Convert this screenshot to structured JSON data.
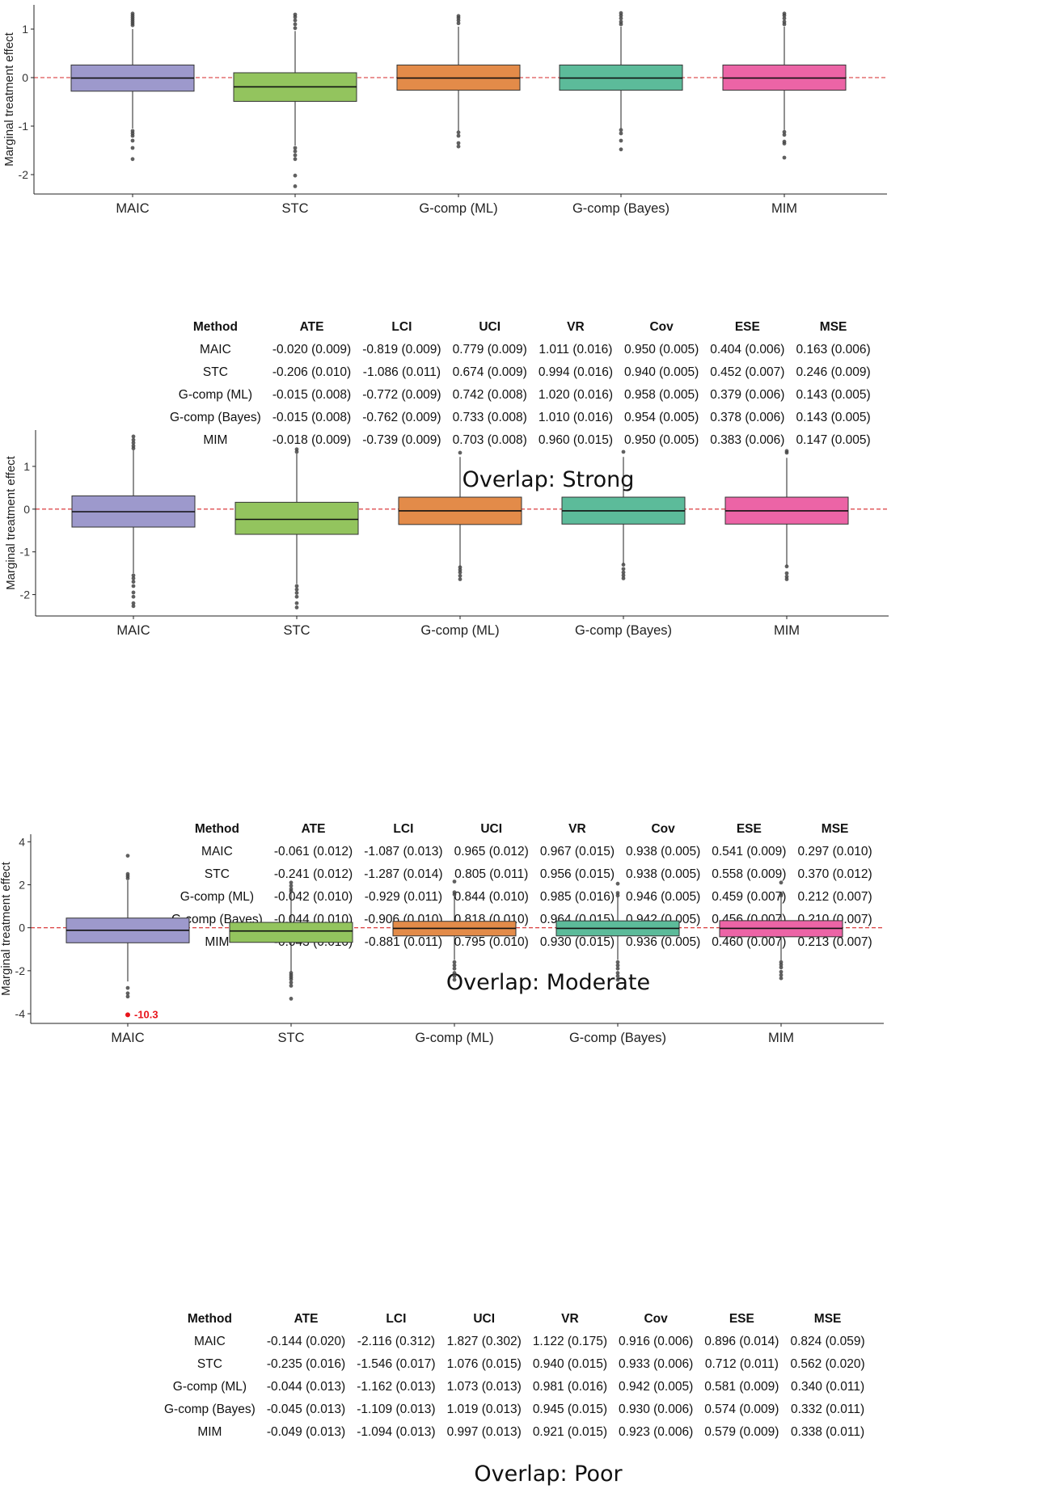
{
  "colors": {
    "MAIC": "#9d99cc",
    "STC": "#93c45e",
    "G-comp (ML)": "#e38b49",
    "G-comp (Bayes)": "#5cbb9a",
    "MIM": "#ec64a6",
    "refline": "#d62728",
    "annotation": "#e8141b"
  },
  "chart_data": [
    {
      "type": "box",
      "title": "Overlap: Strong",
      "ylabel": "Marginal treatment effect",
      "categories": [
        "MAIC",
        "STC",
        "G-comp (ML)",
        "G-comp (Bayes)",
        "MIM"
      ],
      "yticks": [
        1,
        0,
        -1,
        -2
      ],
      "ytick_labels": [
        "1",
        "0",
        "-1",
        "-2"
      ],
      "ylim": [
        -2.4,
        1.5
      ],
      "reference_line": 0,
      "boxes": [
        {
          "category": "MAIC",
          "q1": -0.28,
          "median": -0.01,
          "q3": 0.26,
          "whisker_low": -1.05,
          "whisker_high": 1.0,
          "outliers": [
            1.32,
            1.28,
            1.24,
            1.2,
            1.16,
            1.12,
            1.08,
            -1.1,
            -1.15,
            -1.2,
            -1.3,
            -1.45,
            -1.68
          ]
        },
        {
          "category": "STC",
          "q1": -0.49,
          "median": -0.19,
          "q3": 0.1,
          "whisker_low": -1.4,
          "whisker_high": 0.96,
          "outliers": [
            1.3,
            1.25,
            1.18,
            1.1,
            1.02,
            -1.45,
            -1.52,
            -1.6,
            -1.68,
            -2.02,
            -2.24
          ]
        },
        {
          "category": "G-comp (ML)",
          "q1": -0.26,
          "median": -0.01,
          "q3": 0.26,
          "whisker_low": -1.1,
          "whisker_high": 1.05,
          "outliers": [
            1.27,
            1.23,
            1.18,
            1.12,
            -1.13,
            -1.2,
            -1.35,
            -1.42
          ]
        },
        {
          "category": "G-comp (Bayes)",
          "q1": -0.26,
          "median": -0.01,
          "q3": 0.26,
          "whisker_low": -1.05,
          "whisker_high": 1.05,
          "outliers": [
            1.33,
            1.28,
            1.22,
            1.15,
            1.1,
            -1.08,
            -1.15,
            -1.3,
            -1.48
          ]
        },
        {
          "category": "MIM",
          "q1": -0.26,
          "median": -0.01,
          "q3": 0.26,
          "whisker_low": -1.08,
          "whisker_high": 1.05,
          "outliers": [
            1.32,
            1.28,
            1.22,
            1.15,
            1.1,
            -1.12,
            -1.18,
            -1.32,
            -1.36,
            -1.65
          ]
        }
      ]
    },
    {
      "type": "box",
      "title": "Overlap: Moderate",
      "ylabel": "Marginal treatment effect",
      "categories": [
        "MAIC",
        "STC",
        "G-comp (ML)",
        "G-comp (Bayes)",
        "MIM"
      ],
      "yticks": [
        1,
        0,
        -1,
        -2
      ],
      "ytick_labels": [
        "1",
        "0",
        "-1",
        "-2"
      ],
      "ylim": [
        -2.5,
        1.85
      ],
      "reference_line": 0,
      "boxes": [
        {
          "category": "MAIC",
          "q1": -0.42,
          "median": -0.06,
          "q3": 0.31,
          "whisker_low": -1.5,
          "whisker_high": 1.38,
          "outliers": [
            1.7,
            1.62,
            1.55,
            1.48,
            1.42,
            -1.55,
            -1.62,
            -1.7,
            -1.8,
            -1.95,
            -2.05,
            -2.2,
            -2.27
          ]
        },
        {
          "category": "STC",
          "q1": -0.59,
          "median": -0.24,
          "q3": 0.16,
          "whisker_low": -1.75,
          "whisker_high": 1.3,
          "outliers": [
            1.4,
            1.34,
            -1.8,
            -1.88,
            -1.96,
            -2.05,
            -2.2,
            -2.3
          ]
        },
        {
          "category": "G-comp (ML)",
          "q1": -0.36,
          "median": -0.04,
          "q3": 0.28,
          "whisker_low": -1.35,
          "whisker_high": 1.22,
          "outliers": [
            1.32,
            -1.36,
            -1.42,
            -1.48,
            -1.56,
            -1.64
          ]
        },
        {
          "category": "G-comp (Bayes)",
          "q1": -0.35,
          "median": -0.04,
          "q3": 0.28,
          "whisker_low": -1.3,
          "whisker_high": 1.22,
          "outliers": [
            1.34,
            -1.3,
            -1.4,
            -1.48,
            -1.55,
            -1.62
          ]
        },
        {
          "category": "MIM",
          "q1": -0.35,
          "median": -0.04,
          "q3": 0.28,
          "whisker_low": -1.32,
          "whisker_high": 1.2,
          "outliers": [
            1.36,
            1.32,
            -1.34,
            -1.5,
            -1.58,
            -1.64
          ]
        }
      ]
    },
    {
      "type": "box",
      "title": "Overlap: Poor",
      "ylabel": "Marginal treatment effect",
      "categories": [
        "MAIC",
        "STC",
        "G-comp (ML)",
        "G-comp (Bayes)",
        "MIM"
      ],
      "yticks": [
        4,
        2,
        0,
        -2,
        -4
      ],
      "ytick_labels": [
        "4",
        "2",
        "0",
        "-2",
        "-4"
      ],
      "ylim": [
        -4.45,
        4.35
      ],
      "reference_line": 0,
      "annotation": {
        "category": "MAIC",
        "value": -4.05,
        "label": "-10.3"
      },
      "boxes": [
        {
          "category": "MAIC",
          "q1": -0.7,
          "median": -0.12,
          "q3": 0.45,
          "whisker_low": -2.5,
          "whisker_high": 2.2,
          "outliers": [
            3.35,
            2.5,
            2.4,
            2.3,
            -2.8,
            -3.05,
            -3.2,
            -4.05
          ]
        },
        {
          "category": "STC",
          "q1": -0.68,
          "median": -0.15,
          "q3": 0.25,
          "whisker_low": -2.05,
          "whisker_high": 1.65,
          "outliers": [
            2.1,
            1.95,
            1.8,
            1.7,
            -2.1,
            -2.2,
            -2.3,
            -2.4,
            -2.55,
            -2.7,
            -3.3
          ]
        },
        {
          "category": "G-comp (ML)",
          "q1": -0.38,
          "median": -0.03,
          "q3": 0.3,
          "whisker_low": -1.5,
          "whisker_high": 1.45,
          "outliers": [
            2.15,
            1.65,
            1.55,
            -1.6,
            -1.75,
            -1.9,
            -2.1,
            -2.25,
            -2.42
          ]
        },
        {
          "category": "G-comp (Bayes)",
          "q1": -0.38,
          "median": -0.03,
          "q3": 0.32,
          "whisker_low": -1.5,
          "whisker_high": 1.45,
          "outliers": [
            2.05,
            1.62,
            1.5,
            -1.6,
            -1.75,
            -1.9,
            -2.1,
            -2.25,
            -2.42
          ]
        },
        {
          "category": "MIM",
          "q1": -0.42,
          "median": -0.03,
          "q3": 0.33,
          "whisker_low": -1.52,
          "whisker_high": 1.45,
          "outliers": [
            2.1,
            1.58,
            1.5,
            -1.6,
            -1.72,
            -1.85,
            -2.05,
            -2.2,
            -2.35
          ]
        }
      ]
    }
  ],
  "tables": [
    {
      "headers": [
        "Method",
        "ATE",
        "LCI",
        "UCI",
        "VR",
        "Cov",
        "ESE",
        "MSE"
      ],
      "rows": [
        [
          "MAIC",
          "-0.020 (0.009)",
          "-0.819 (0.009)",
          "0.779 (0.009)",
          "1.011 (0.016)",
          "0.950 (0.005)",
          "0.404 (0.006)",
          "0.163 (0.006)"
        ],
        [
          "STC",
          "-0.206 (0.010)",
          "-1.086 (0.011)",
          "0.674 (0.009)",
          "0.994 (0.016)",
          "0.940 (0.005)",
          "0.452 (0.007)",
          "0.246 (0.009)"
        ],
        [
          "G-comp (ML)",
          "-0.015 (0.008)",
          "-0.772 (0.009)",
          "0.742 (0.008)",
          "1.020 (0.016)",
          "0.958 (0.005)",
          "0.379 (0.006)",
          "0.143 (0.005)"
        ],
        [
          "G-comp (Bayes)",
          "-0.015 (0.008)",
          "-0.762 (0.009)",
          "0.733 (0.008)",
          "1.010 (0.016)",
          "0.954 (0.005)",
          "0.378 (0.006)",
          "0.143 (0.005)"
        ],
        [
          "MIM",
          "-0.018 (0.009)",
          "-0.739 (0.009)",
          "0.703 (0.008)",
          "0.960 (0.015)",
          "0.950 (0.005)",
          "0.383 (0.006)",
          "0.147 (0.005)"
        ]
      ],
      "caption": "Overlap: Strong"
    },
    {
      "headers": [
        "Method",
        "ATE",
        "LCI",
        "UCI",
        "VR",
        "Cov",
        "ESE",
        "MSE"
      ],
      "rows": [
        [
          "MAIC",
          "-0.061 (0.012)",
          "-1.087 (0.013)",
          "0.965 (0.012)",
          "0.967 (0.015)",
          "0.938 (0.005)",
          "0.541 (0.009)",
          "0.297 (0.010)"
        ],
        [
          "STC",
          "-0.241 (0.012)",
          "-1.287 (0.014)",
          "0.805 (0.011)",
          "0.956 (0.015)",
          "0.938 (0.005)",
          "0.558 (0.009)",
          "0.370 (0.012)"
        ],
        [
          "G-comp (ML)",
          "-0.042 (0.010)",
          "-0.929 (0.011)",
          "0.844 (0.010)",
          "0.985 (0.016)",
          "0.946 (0.005)",
          "0.459 (0.007)",
          "0.212 (0.007)"
        ],
        [
          "G-comp (Bayes)",
          "-0.044 (0.010)",
          "-0.906 (0.010)",
          "0.818 (0.010)",
          "0.964 (0.015)",
          "0.942 (0.005)",
          "0.456 (0.007)",
          "0.210 (0.007)"
        ],
        [
          "MIM",
          "-0.043 (0.010)",
          "-0.881 (0.011)",
          "0.795 (0.010)",
          "0.930 (0.015)",
          "0.936 (0.005)",
          "0.460 (0.007)",
          "0.213 (0.007)"
        ]
      ],
      "caption": "Overlap: Moderate"
    },
    {
      "headers": [
        "Method",
        "ATE",
        "LCI",
        "UCI",
        "VR",
        "Cov",
        "ESE",
        "MSE"
      ],
      "rows": [
        [
          "MAIC",
          "-0.144 (0.020)",
          "-2.116 (0.312)",
          "1.827 (0.302)",
          "1.122 (0.175)",
          "0.916 (0.006)",
          "0.896 (0.014)",
          "0.824 (0.059)"
        ],
        [
          "STC",
          "-0.235 (0.016)",
          "-1.546 (0.017)",
          "1.076 (0.015)",
          "0.940 (0.015)",
          "0.933 (0.006)",
          "0.712 (0.011)",
          "0.562 (0.020)"
        ],
        [
          "G-comp (ML)",
          "-0.044 (0.013)",
          "-1.162 (0.013)",
          "1.073 (0.013)",
          "0.981 (0.016)",
          "0.942 (0.005)",
          "0.581 (0.009)",
          "0.340 (0.011)"
        ],
        [
          "G-comp (Bayes)",
          "-0.045 (0.013)",
          "-1.109 (0.013)",
          "1.019 (0.013)",
          "0.945 (0.015)",
          "0.930 (0.006)",
          "0.574 (0.009)",
          "0.332 (0.011)"
        ],
        [
          "MIM",
          "-0.049 (0.013)",
          "-1.094 (0.013)",
          "0.997 (0.013)",
          "0.921 (0.015)",
          "0.923 (0.006)",
          "0.579 (0.009)",
          "0.338 (0.011)"
        ]
      ],
      "caption": "Overlap: Poor"
    }
  ]
}
